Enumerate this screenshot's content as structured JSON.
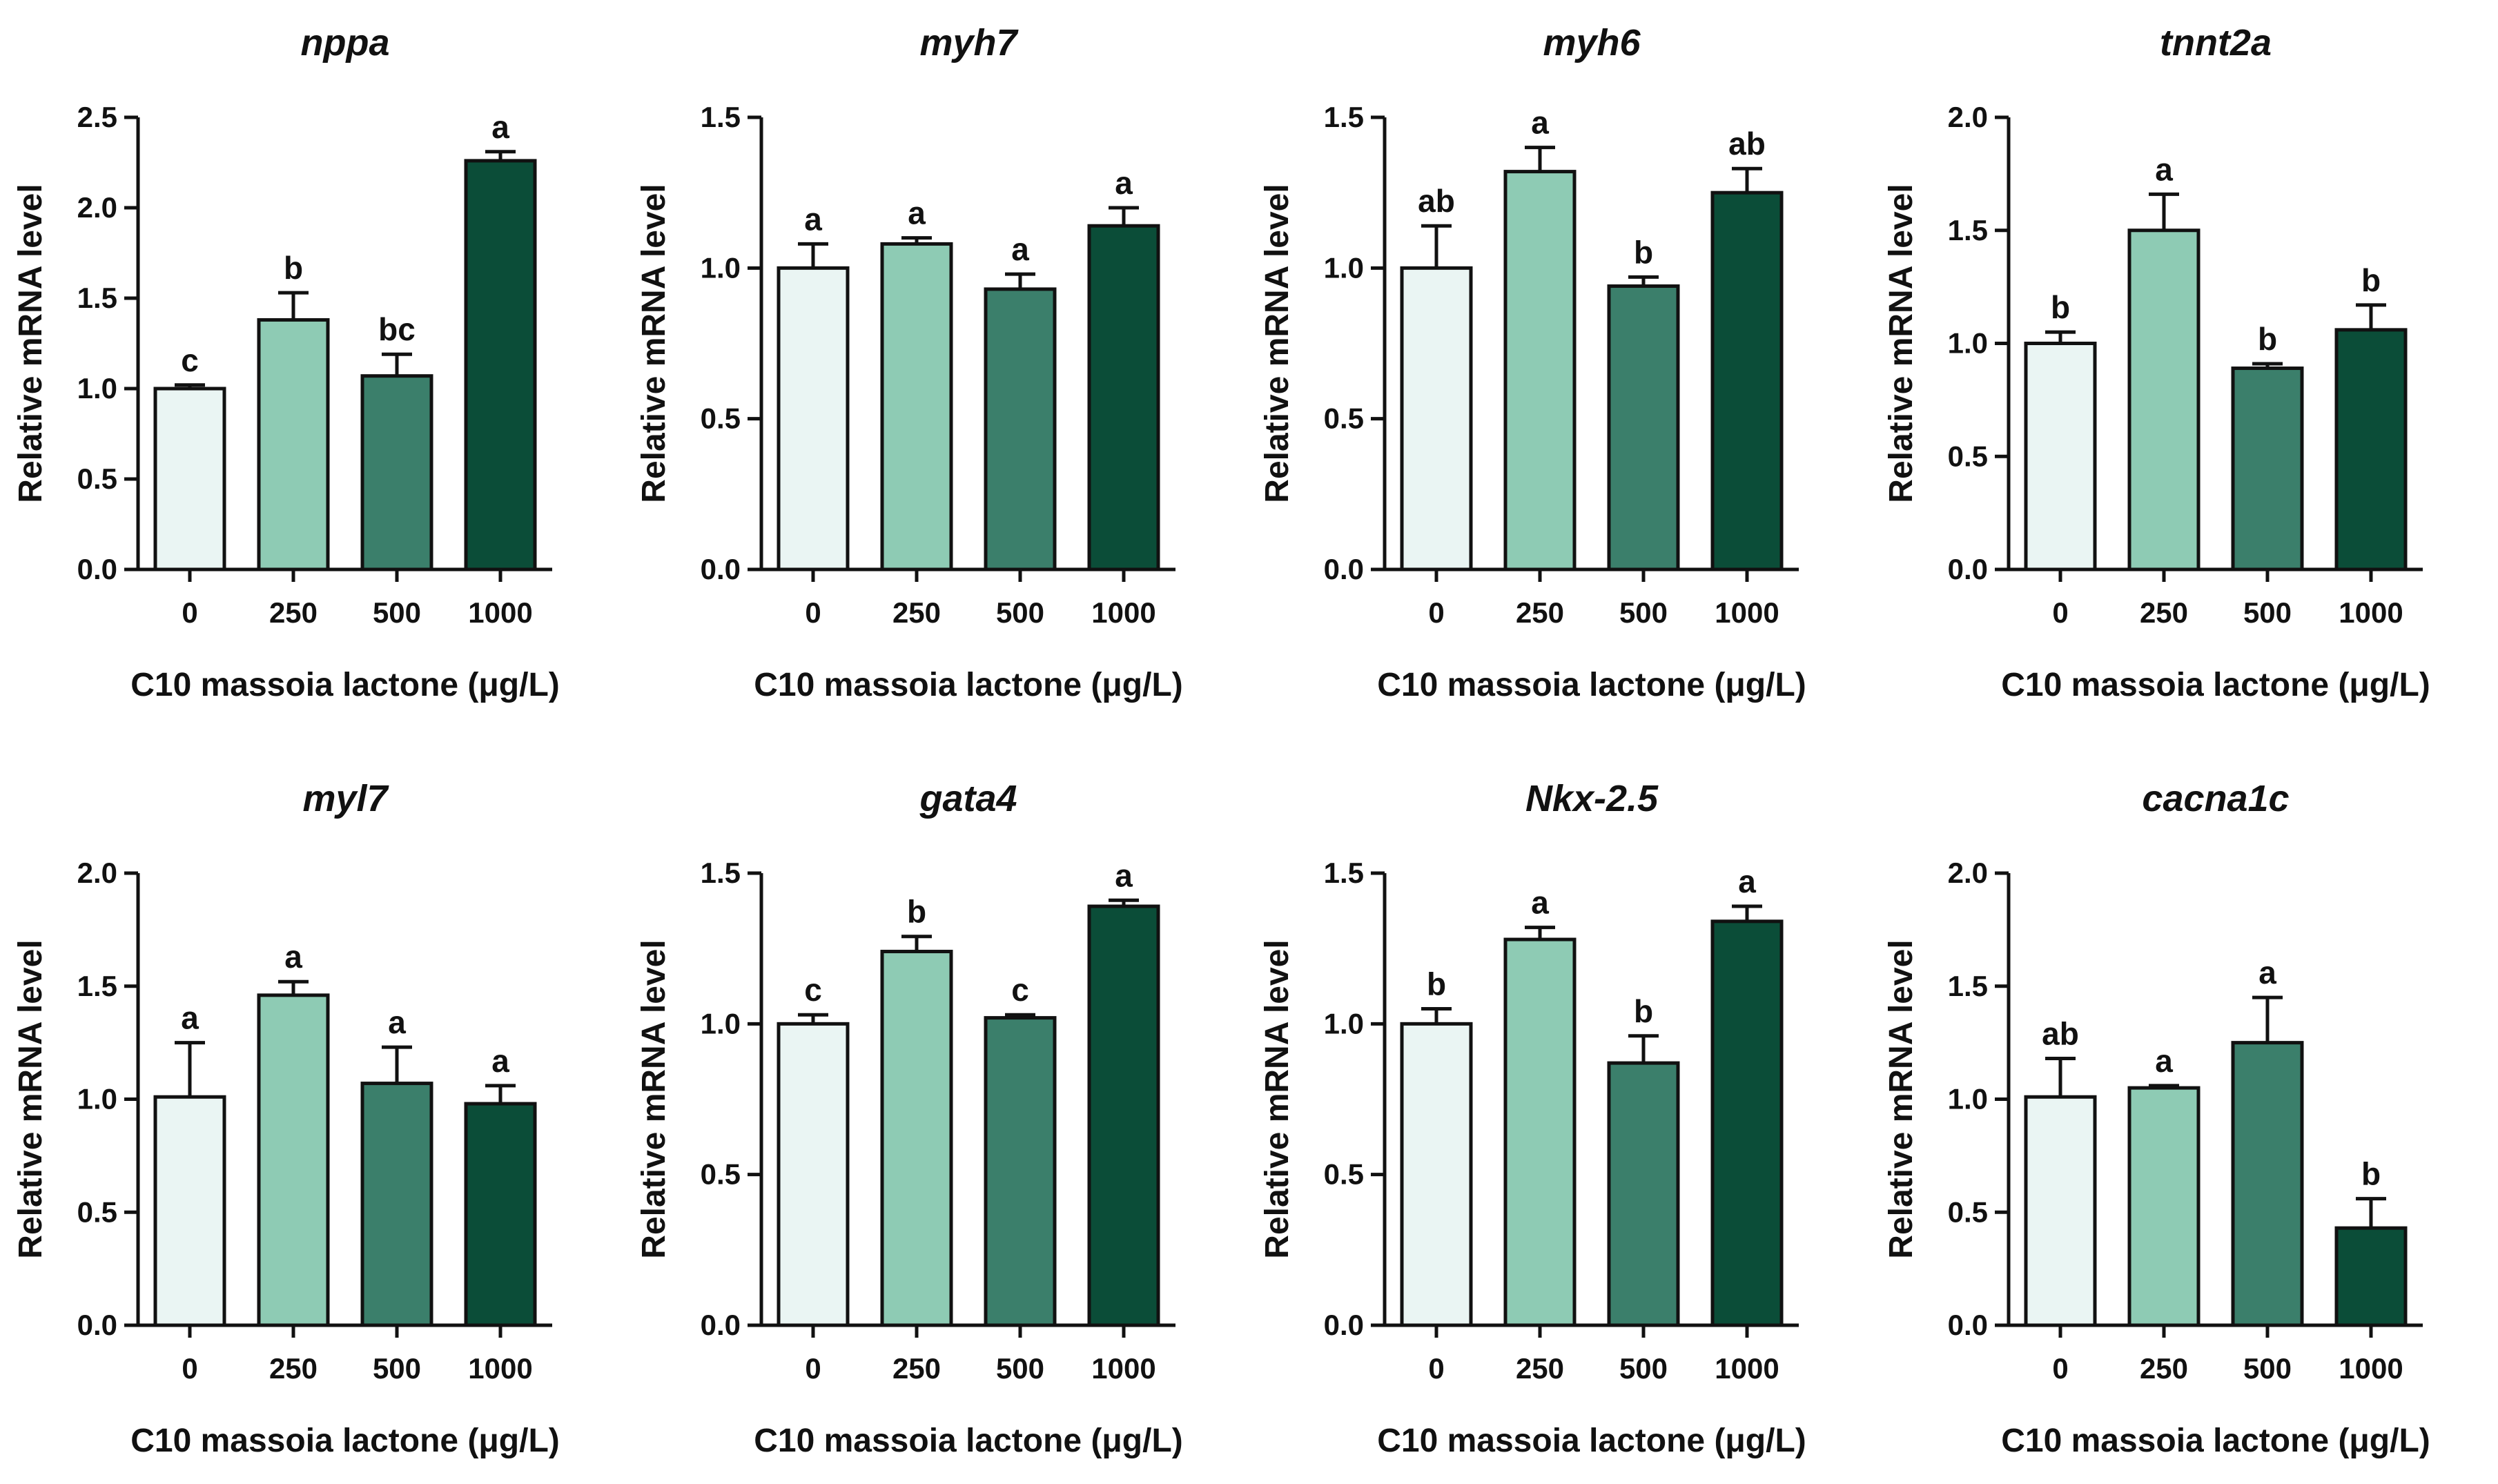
{
  "figure": {
    "xlabel": "C10 massoia lactone (μg/L)",
    "ylabel": "Relative mRNA level",
    "colors": [
      "#eaf5f3",
      "#8ecbb4",
      "#3b7f6b",
      "#0b4d38"
    ]
  },
  "chart_data": [
    {
      "type": "bar",
      "title": "nppa",
      "categories": [
        "0",
        "250",
        "500",
        "1000"
      ],
      "values": [
        1.0,
        1.38,
        1.07,
        2.26
      ],
      "errors": [
        0.02,
        0.15,
        0.12,
        0.05
      ],
      "significance": [
        "c",
        "b",
        "bc",
        "a"
      ],
      "ylim": [
        0,
        2.5
      ],
      "yticks": [
        0,
        0.5,
        1.0,
        1.5,
        2.0,
        2.5
      ],
      "ytick_labels": [
        "0.0",
        "0.5",
        "1.0",
        "1.5",
        "2.0",
        "2.5"
      ],
      "xlabel": "C10 massoia lactone (μg/L)",
      "ylabel": "Relative mRNA level"
    },
    {
      "type": "bar",
      "title": "myh7",
      "categories": [
        "0",
        "250",
        "500",
        "1000"
      ],
      "values": [
        1.0,
        1.08,
        0.93,
        1.14
      ],
      "errors": [
        0.08,
        0.02,
        0.05,
        0.06
      ],
      "significance": [
        "a",
        "a",
        "a",
        "a"
      ],
      "ylim": [
        0,
        1.5
      ],
      "yticks": [
        0,
        0.5,
        1.0,
        1.5
      ],
      "ytick_labels": [
        "0.0",
        "0.5",
        "1.0",
        "1.5"
      ],
      "xlabel": "C10 massoia lactone (μg/L)",
      "ylabel": "Relative mRNA level"
    },
    {
      "type": "bar",
      "title": "myh6",
      "categories": [
        "0",
        "250",
        "500",
        "1000"
      ],
      "values": [
        1.0,
        1.32,
        0.94,
        1.25
      ],
      "errors": [
        0.14,
        0.08,
        0.03,
        0.08
      ],
      "significance": [
        "ab",
        "a",
        "b",
        "ab"
      ],
      "ylim": [
        0,
        1.5
      ],
      "yticks": [
        0,
        0.5,
        1.0,
        1.5
      ],
      "ytick_labels": [
        "0.0",
        "0.5",
        "1.0",
        "1.5"
      ],
      "xlabel": "C10 massoia lactone (μg/L)",
      "ylabel": "Relative mRNA level"
    },
    {
      "type": "bar",
      "title": "tnnt2a",
      "categories": [
        "0",
        "250",
        "500",
        "1000"
      ],
      "values": [
        1.0,
        1.5,
        0.89,
        1.06
      ],
      "errors": [
        0.05,
        0.16,
        0.02,
        0.11
      ],
      "significance": [
        "b",
        "a",
        "b",
        "b"
      ],
      "ylim": [
        0,
        2.0
      ],
      "yticks": [
        0,
        0.5,
        1.0,
        1.5,
        2.0
      ],
      "ytick_labels": [
        "0.0",
        "0.5",
        "1.0",
        "1.5",
        "2.0"
      ],
      "xlabel": "C10 massoia lactone (μg/L)",
      "ylabel": "Relative mRNA level"
    },
    {
      "type": "bar",
      "title": "myl7",
      "categories": [
        "0",
        "250",
        "500",
        "1000"
      ],
      "values": [
        1.01,
        1.46,
        1.07,
        0.98
      ],
      "errors": [
        0.24,
        0.06,
        0.16,
        0.08
      ],
      "significance": [
        "a",
        "a",
        "a",
        "a"
      ],
      "ylim": [
        0,
        2.0
      ],
      "yticks": [
        0,
        0.5,
        1.0,
        1.5,
        2.0
      ],
      "ytick_labels": [
        "0.0",
        "0.5",
        "1.0",
        "1.5",
        "2.0"
      ],
      "xlabel": "C10 massoia lactone (μg/L)",
      "ylabel": "Relative mRNA level"
    },
    {
      "type": "bar",
      "title": "gata4",
      "categories": [
        "0",
        "250",
        "500",
        "1000"
      ],
      "values": [
        1.0,
        1.24,
        1.02,
        1.39
      ],
      "errors": [
        0.03,
        0.05,
        0.01,
        0.02
      ],
      "significance": [
        "c",
        "b",
        "c",
        "a"
      ],
      "ylim": [
        0,
        1.5
      ],
      "yticks": [
        0,
        0.5,
        1.0,
        1.5
      ],
      "ytick_labels": [
        "0.0",
        "0.5",
        "1.0",
        "1.5"
      ],
      "xlabel": "C10 massoia lactone (μg/L)",
      "ylabel": "Relative mRNA level"
    },
    {
      "type": "bar",
      "title": "Nkx-2.5",
      "categories": [
        "0",
        "250",
        "500",
        "1000"
      ],
      "values": [
        1.0,
        1.28,
        0.87,
        1.34
      ],
      "errors": [
        0.05,
        0.04,
        0.09,
        0.05
      ],
      "significance": [
        "b",
        "a",
        "b",
        "a"
      ],
      "ylim": [
        0,
        1.5
      ],
      "yticks": [
        0,
        0.5,
        1.0,
        1.5
      ],
      "ytick_labels": [
        "0.0",
        "0.5",
        "1.0",
        "1.5"
      ],
      "xlabel": "C10 massoia lactone (μg/L)",
      "ylabel": "Relative mRNA level"
    },
    {
      "type": "bar",
      "title": "cacna1c",
      "categories": [
        "0",
        "250",
        "500",
        "1000"
      ],
      "values": [
        1.01,
        1.05,
        1.25,
        0.43
      ],
      "errors": [
        0.17,
        0.01,
        0.2,
        0.13
      ],
      "significance": [
        "ab",
        "a",
        "a",
        "b"
      ],
      "ylim": [
        0,
        2.0
      ],
      "yticks": [
        0,
        0.5,
        1.0,
        1.5,
        2.0
      ],
      "ytick_labels": [
        "0.0",
        "0.5",
        "1.0",
        "1.5",
        "2.0"
      ],
      "xlabel": "C10 massoia lactone (μg/L)",
      "ylabel": "Relative mRNA level"
    }
  ]
}
